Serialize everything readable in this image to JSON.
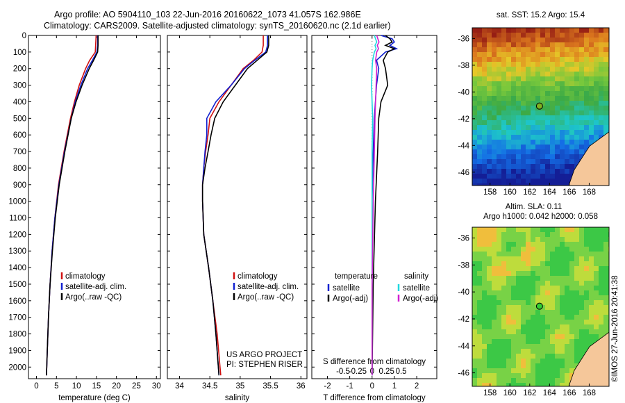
{
  "header": {
    "line1": "Argo profile: AO 5904110_103 22-Jun-2016 20160622_1073 41.057S 162.986E",
    "line2": "Climatology: CARS2009. Satellite-adjusted climatology: synTS_20160620.nc (2.1d earlier)"
  },
  "colors": {
    "climatology": "#d01010",
    "satellite": "#1020d0",
    "argo": "#000000",
    "sal_sat": "#20d8e0",
    "sal_argo": "#d020d0",
    "land": "#f5c79a"
  },
  "chart_data": [
    {
      "type": "line",
      "panel": "temperature",
      "xlabel": "temperature (deg C)",
      "xlim": [
        -2,
        31
      ],
      "xticks": [
        "0",
        "5",
        "10",
        "15",
        "20",
        "25",
        "30"
      ],
      "ylim": [
        2070,
        0
      ],
      "yticks": [
        "0",
        "100",
        "200",
        "300",
        "400",
        "500",
        "600",
        "700",
        "800",
        "900",
        "1000",
        "1100",
        "1200",
        "1300",
        "1400",
        "1500",
        "1600",
        "1700",
        "1800",
        "1900",
        "2000"
      ],
      "legend": [
        "climatology",
        "satellite-adj. clim.",
        "Argo(..raw -QC)"
      ],
      "legend_position": "lower-right",
      "series": [
        {
          "name": "climatology",
          "depth": [
            0,
            10,
            60,
            100,
            150,
            200,
            300,
            400,
            500,
            700,
            900,
            1100,
            1300,
            1500,
            1700,
            1900,
            2050
          ],
          "values": [
            14.9,
            14.9,
            14.8,
            14.7,
            13.3,
            12.3,
            10.7,
            9.5,
            8.5,
            6.9,
            5.5,
            4.6,
            3.9,
            3.4,
            3.0,
            2.7,
            2.5
          ]
        },
        {
          "name": "satellite-adj. clim.",
          "depth": [
            0,
            10,
            60,
            100,
            150,
            200,
            300,
            400,
            500,
            700,
            900,
            1100,
            1300,
            1500,
            1700,
            1900,
            2050
          ],
          "values": [
            15.3,
            15.3,
            15.3,
            15.1,
            14.0,
            12.8,
            11.1,
            9.7,
            8.7,
            7.0,
            5.6,
            4.6,
            3.9,
            3.4,
            3.0,
            2.7,
            2.5
          ]
        },
        {
          "name": "Argo(..raw -QC)",
          "depth": [
            0,
            10,
            60,
            100,
            150,
            200,
            300,
            400,
            500,
            700,
            900,
            1100,
            1300,
            1500,
            1700,
            1900,
            2050
          ],
          "values": [
            15.4,
            15.4,
            15.4,
            15.3,
            14.3,
            13.2,
            11.4,
            9.9,
            8.7,
            7.1,
            5.7,
            4.7,
            4.0,
            3.4,
            3.0,
            2.7,
            2.5
          ]
        }
      ]
    },
    {
      "type": "line",
      "panel": "salinity",
      "xlabel": "salinity",
      "xlim": [
        33.8,
        36.1
      ],
      "xticks": [
        "34",
        "34.5",
        "35",
        "35.5",
        "36"
      ],
      "ylim": [
        2070,
        0
      ],
      "legend": [
        "climatology",
        "satellite-adj. clim.",
        "Argo(..raw -QC)"
      ],
      "legend_position": "lower-right",
      "series": [
        {
          "name": "climatology",
          "depth": [
            0,
            10,
            60,
            100,
            150,
            200,
            300,
            400,
            500,
            600,
            700,
            800,
            900,
            1000,
            1200,
            1400,
            1600,
            1800,
            2050
          ],
          "values": [
            35.38,
            35.38,
            35.38,
            35.36,
            35.22,
            35.05,
            34.85,
            34.65,
            34.5,
            34.47,
            34.43,
            34.4,
            34.38,
            34.38,
            34.4,
            34.48,
            34.55,
            34.62,
            34.68
          ]
        },
        {
          "name": "satellite-adj. clim.",
          "depth": [
            0,
            10,
            60,
            100,
            150,
            200,
            300,
            400,
            500,
            600,
            700,
            800,
            900,
            1000,
            1200,
            1400,
            1600,
            1800,
            2050
          ],
          "values": [
            35.45,
            35.45,
            35.45,
            35.42,
            35.24,
            35.07,
            34.85,
            34.6,
            34.45,
            34.45,
            34.42,
            34.4,
            34.38,
            34.38,
            34.4,
            34.48,
            34.55,
            34.6,
            34.65
          ]
        },
        {
          "name": "Argo(..raw -QC)",
          "depth": [
            0,
            10,
            60,
            100,
            150,
            200,
            300,
            400,
            500,
            600,
            700,
            800,
            900,
            1000,
            1200,
            1400,
            1600,
            1800,
            2050
          ],
          "values": [
            35.47,
            35.47,
            35.47,
            35.44,
            35.28,
            35.12,
            34.92,
            34.72,
            34.58,
            34.52,
            34.47,
            34.42,
            34.38,
            34.38,
            34.4,
            34.48,
            34.55,
            34.6,
            34.65
          ]
        }
      ]
    },
    {
      "type": "line",
      "panel": "differences",
      "xlabel_top": "S difference from climatology",
      "xticks_top": [
        "-0.5",
        "-0.25",
        "0",
        "0.25",
        "0.5"
      ],
      "xlabel": "T difference from climatology",
      "xlim": [
        -2.7,
        2.9
      ],
      "xticks": [
        "-2",
        "-1",
        "0",
        "1",
        "2"
      ],
      "ylim": [
        2070,
        0
      ],
      "legend_titles": [
        "temperature",
        "salinity"
      ],
      "legend": [
        "satellite",
        "Argo(-adj)",
        "satellite",
        "Argo(-adj)"
      ],
      "series": [
        {
          "name": "satellite",
          "quantity": "temperature",
          "depth": [
            0,
            20,
            40,
            60,
            80,
            100,
            150,
            200,
            300,
            400,
            500,
            700,
            1000,
            1500,
            2050
          ],
          "values": [
            0.4,
            0.9,
            1.0,
            0.8,
            1.1,
            0.6,
            0.2,
            0.3,
            0.2,
            0.15,
            0.1,
            0.05,
            0.0,
            0.0,
            0.0
          ]
        },
        {
          "name": "Argo(-adj)",
          "quantity": "temperature",
          "depth": [
            0,
            20,
            40,
            60,
            80,
            100,
            150,
            200,
            300,
            400,
            500,
            700,
            1000,
            1500,
            2050
          ],
          "values": [
            0.6,
            0.8,
            0.9,
            0.6,
            1.0,
            0.7,
            0.5,
            0.6,
            0.7,
            0.4,
            0.3,
            0.25,
            0.15,
            0.05,
            0.0
          ]
        },
        {
          "name": "satellite",
          "quantity": "salinity",
          "depth": [
            0,
            20,
            40,
            60,
            80,
            100,
            150,
            200,
            300,
            400,
            500,
            700,
            1000,
            1500,
            2050
          ],
          "values": [
            0.04,
            0.06,
            0.08,
            0.05,
            0.07,
            0.04,
            0.01,
            0.0,
            -0.01,
            0.0,
            0.01,
            0.0,
            0.0,
            0.0,
            0.0
          ]
        },
        {
          "name": "Argo(-adj)",
          "quantity": "salinity",
          "depth": [
            0,
            20,
            40,
            60,
            80,
            100,
            150,
            200,
            300,
            400,
            500,
            700,
            1000,
            1500,
            2050
          ],
          "values": [
            0.08,
            0.1,
            0.12,
            0.09,
            0.11,
            0.08,
            0.06,
            0.08,
            0.07,
            0.06,
            0.05,
            0.04,
            0.02,
            0.0,
            0.0
          ]
        }
      ]
    },
    {
      "type": "heatmap",
      "panel": "sst_map",
      "title": "sat. SST: 15.2 Argo: 15.4",
      "xticks": [
        "158",
        "160",
        "162",
        "164",
        "166",
        "168"
      ],
      "yticks": [
        "-36",
        "-38",
        "-40",
        "-42",
        "-44",
        "-46"
      ],
      "xlim": [
        156.2,
        170
      ],
      "ylim": [
        -47,
        -35.2
      ],
      "marker": {
        "lon": 162.986,
        "lat": -41.057
      }
    },
    {
      "type": "heatmap",
      "panel": "sla_map",
      "title": "Altim. SLA: 0.11",
      "subtitle": "Argo h1000: 0.042 h2000: 0.058",
      "xticks": [
        "158",
        "160",
        "162",
        "164",
        "166",
        "168"
      ],
      "yticks": [
        "-36",
        "-38",
        "-40",
        "-42",
        "-44",
        "-46"
      ],
      "xlim": [
        156.2,
        170
      ],
      "ylim": [
        -47,
        -35.2
      ],
      "marker": {
        "lon": 162.986,
        "lat": -41.057
      }
    }
  ],
  "footer": {
    "project": "US ARGO PROJECT",
    "pi": "PI: STEPHEN RISER",
    "credit": "©IMOS 27-Jun-2016 20:41:38"
  }
}
